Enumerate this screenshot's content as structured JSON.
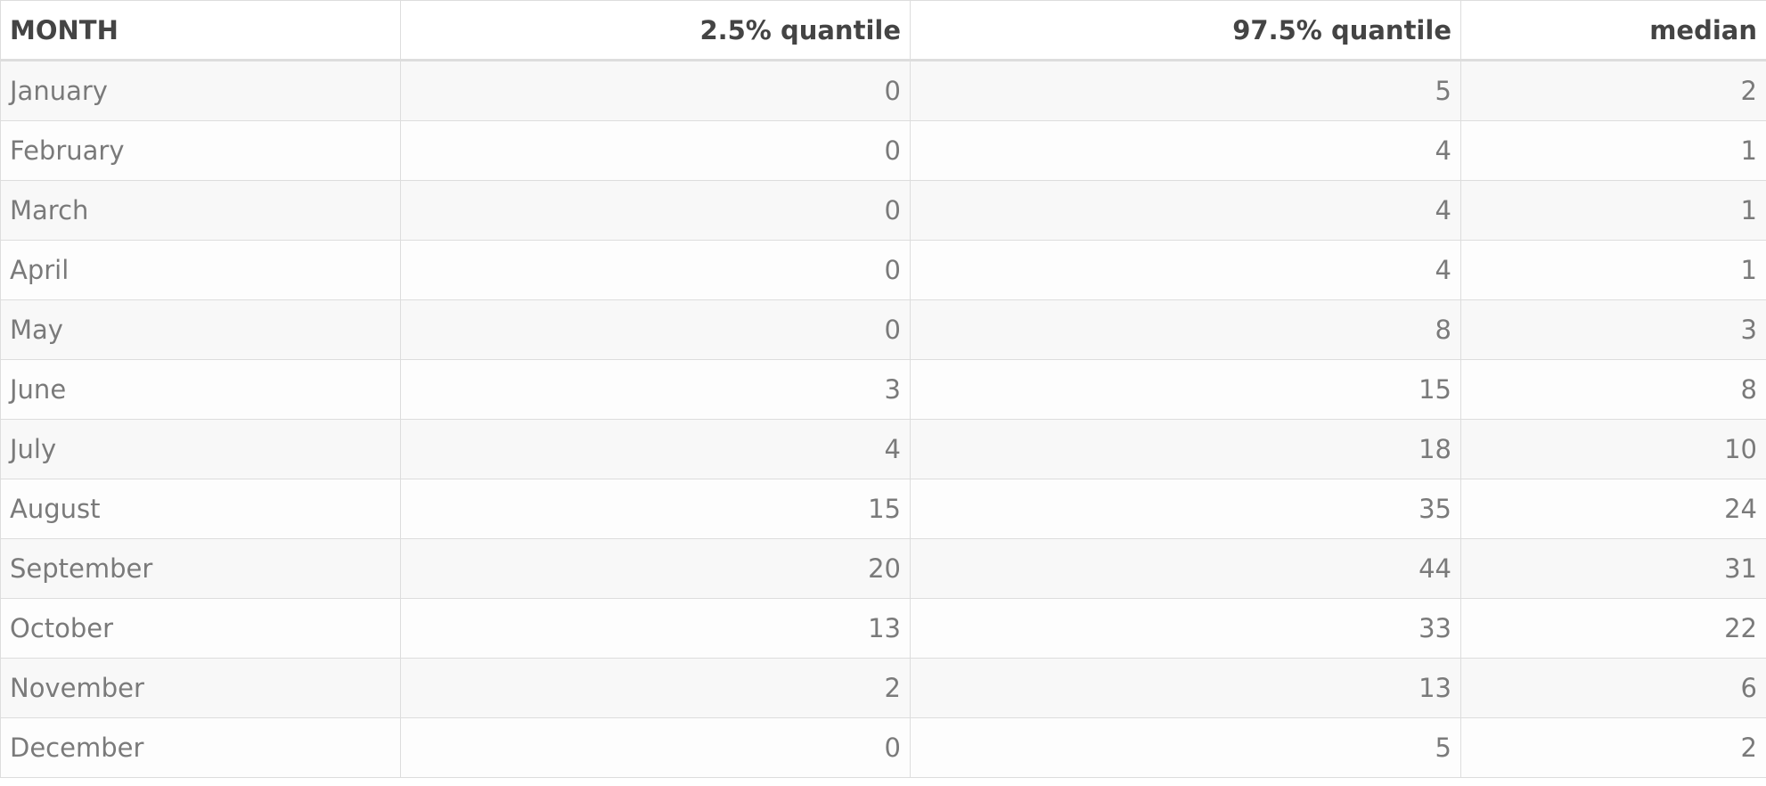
{
  "table": {
    "headers": [
      "MONTH",
      "2.5% quantile",
      "97.5% quantile",
      "median"
    ],
    "rows": [
      {
        "month": "January",
        "q025": "0",
        "q975": "5",
        "median": "2"
      },
      {
        "month": "February",
        "q025": "0",
        "q975": "4",
        "median": "1"
      },
      {
        "month": "March",
        "q025": "0",
        "q975": "4",
        "median": "1"
      },
      {
        "month": "April",
        "q025": "0",
        "q975": "4",
        "median": "1"
      },
      {
        "month": "May",
        "q025": "0",
        "q975": "8",
        "median": "3"
      },
      {
        "month": "June",
        "q025": "3",
        "q975": "15",
        "median": "8"
      },
      {
        "month": "July",
        "q025": "4",
        "q975": "18",
        "median": "10"
      },
      {
        "month": "August",
        "q025": "15",
        "q975": "35",
        "median": "24"
      },
      {
        "month": "September",
        "q025": "20",
        "q975": "44",
        "median": "31"
      },
      {
        "month": "October",
        "q025": "13",
        "q975": "33",
        "median": "22"
      },
      {
        "month": "November",
        "q025": "2",
        "q975": "13",
        "median": "6"
      },
      {
        "month": "December",
        "q025": "0",
        "q975": "5",
        "median": "2"
      }
    ]
  }
}
